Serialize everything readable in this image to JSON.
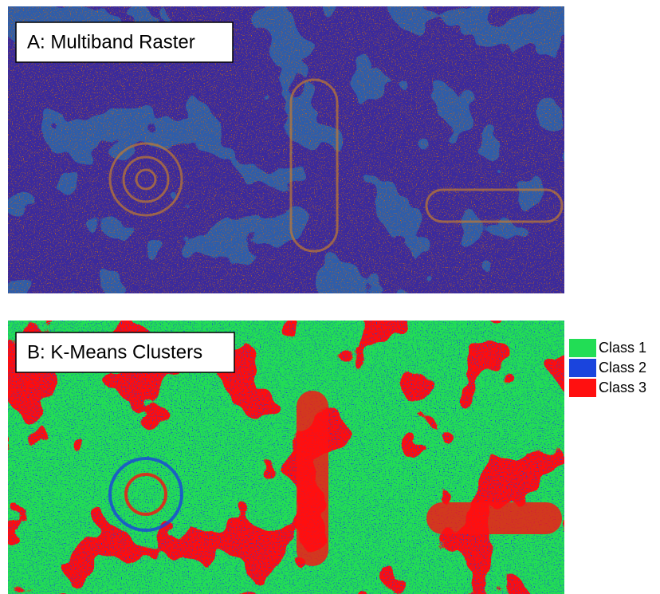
{
  "panels": [
    {
      "label": "A: Multiband Raster"
    },
    {
      "label": "B: K-Means Clusters"
    }
  ],
  "legend": [
    {
      "name": "Class 1",
      "color": "#22dd55"
    },
    {
      "name": "Class 2",
      "color": "#1a44dd"
    },
    {
      "name": "Class 3",
      "color": "#ff1010"
    }
  ]
}
